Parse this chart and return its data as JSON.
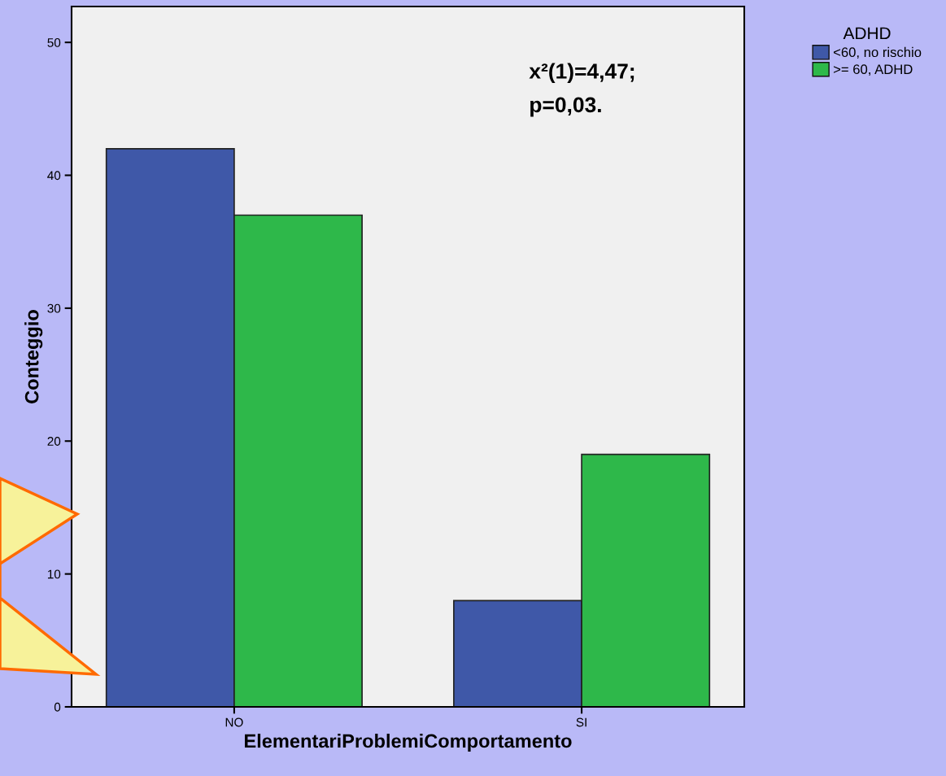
{
  "chart_data": {
    "type": "bar",
    "xlabel": "ElementariProblemiComportamento",
    "ylabel": "Conteggio",
    "categories": [
      "NO",
      "SI"
    ],
    "series": [
      {
        "name": "<60, no rischio",
        "color": "#3f58a8",
        "values": [
          42,
          8
        ]
      },
      {
        "name": ">= 60, ADHD",
        "color": "#2eb84a",
        "values": [
          37,
          19
        ]
      }
    ],
    "legend_title": "ADHD",
    "legend": "top right",
    "ylim": [
      0,
      52.7
    ],
    "yticks": [
      0,
      10,
      20,
      30,
      40,
      50
    ],
    "grid": false,
    "annotations": [
      "x²(1)=4,47;",
      "p=0,03."
    ]
  }
}
